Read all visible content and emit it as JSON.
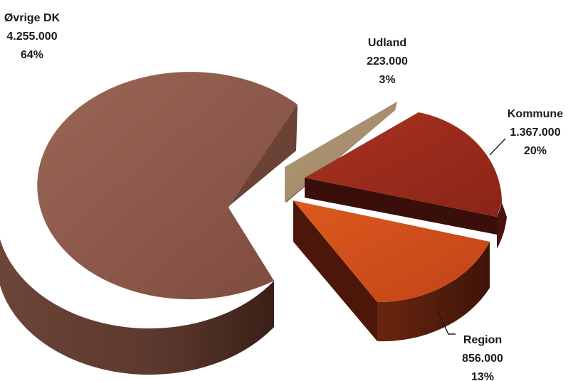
{
  "chart_data": {
    "type": "pie",
    "style": "3d-exploded",
    "title": "",
    "legend": "none",
    "slices": [
      {
        "name": "Kommune",
        "value_label": "1.367.000",
        "value": 1367000,
        "pct_label": "20%",
        "color": "#9B2A1E",
        "side_color": "#4A130D"
      },
      {
        "name": "Region",
        "value_label": "856.000",
        "value": 856000,
        "pct_label": "13%",
        "color": "#D24E1B",
        "side_color": "#5A1E0D"
      },
      {
        "name": "Øvrige DK",
        "value_label": "4.255.000",
        "value": 4255000,
        "pct_label": "64%",
        "color": "#8E5A4B",
        "side_color": "#5A372D"
      },
      {
        "name": "Udland",
        "value_label": "223.000",
        "value": 223000,
        "pct_label": "3%",
        "color": "#A89070",
        "side_color": "#6E5C44"
      }
    ]
  }
}
